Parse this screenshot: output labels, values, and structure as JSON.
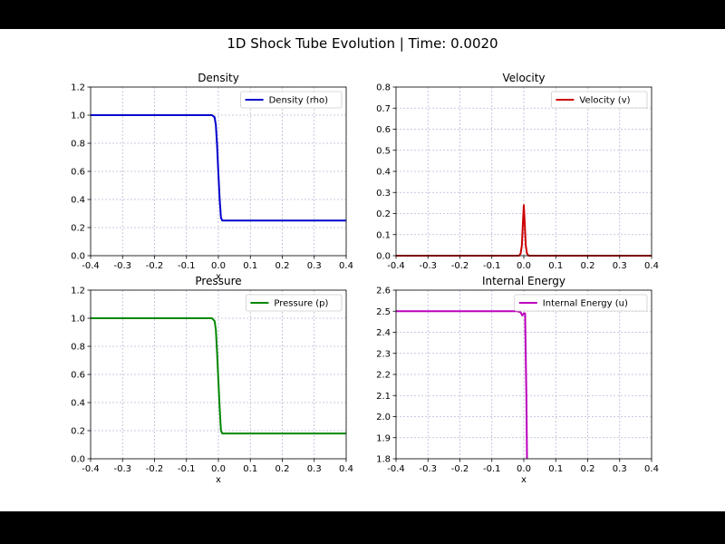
{
  "figure": {
    "suptitle": "1D Shock Tube Evolution | Time: 0.0020"
  },
  "chart_data": [
    {
      "type": "line",
      "title": "Density",
      "xlabel": "x",
      "ylabel": "",
      "xlim": [
        -0.4,
        0.4
      ],
      "ylim": [
        0,
        1.2
      ],
      "xticks": [
        "-0.4",
        "-0.3",
        "-0.2",
        "-0.1",
        "0.0",
        "0.1",
        "0.2",
        "0.3",
        "0.4"
      ],
      "yticks": [
        "0.0",
        "0.2",
        "0.4",
        "0.6",
        "0.8",
        "1.0",
        "1.2"
      ],
      "grid": true,
      "legend": "top-right",
      "series": [
        {
          "name": "Density (rho)",
          "color": "#0000cc",
          "x": [
            -0.4,
            -0.02,
            -0.012,
            -0.008,
            -0.004,
            0.0,
            0.004,
            0.008,
            0.012,
            0.4
          ],
          "y": [
            1.0,
            1.0,
            0.985,
            0.93,
            0.78,
            0.58,
            0.4,
            0.27,
            0.25,
            0.25
          ]
        }
      ]
    },
    {
      "type": "line",
      "title": "Velocity",
      "xlabel": "",
      "ylabel": "",
      "xlim": [
        -0.4,
        0.4
      ],
      "ylim": [
        0,
        0.8
      ],
      "xticks": [
        "-0.4",
        "-0.3",
        "-0.2",
        "-0.1",
        "0.0",
        "0.1",
        "0.2",
        "0.3",
        "0.4"
      ],
      "yticks": [
        "0.0",
        "0.1",
        "0.2",
        "0.3",
        "0.4",
        "0.5",
        "0.6",
        "0.7",
        "0.8"
      ],
      "grid": true,
      "legend": "top-right",
      "series": [
        {
          "name": "Velocity (v)",
          "color": "#cc0000",
          "x": [
            -0.4,
            -0.015,
            -0.01,
            -0.006,
            -0.003,
            0.0,
            0.003,
            0.006,
            0.01,
            0.015,
            0.4
          ],
          "y": [
            0.0,
            0.0,
            0.01,
            0.05,
            0.15,
            0.24,
            0.15,
            0.05,
            0.01,
            0.0,
            0.0
          ]
        }
      ]
    },
    {
      "type": "line",
      "title": "Pressure",
      "xlabel": "x",
      "ylabel": "",
      "xlim": [
        -0.4,
        0.4
      ],
      "ylim": [
        0,
        1.2
      ],
      "xticks": [
        "-0.4",
        "-0.3",
        "-0.2",
        "-0.1",
        "0.0",
        "0.1",
        "0.2",
        "0.3",
        "0.4"
      ],
      "yticks": [
        "0.0",
        "0.2",
        "0.4",
        "0.6",
        "0.8",
        "1.0",
        "1.2"
      ],
      "grid": true,
      "legend": "top-right",
      "series": [
        {
          "name": "Pressure (p)",
          "color": "#008800",
          "x": [
            -0.4,
            -0.02,
            -0.012,
            -0.008,
            -0.004,
            0.0,
            0.004,
            0.008,
            0.012,
            0.4
          ],
          "y": [
            1.0,
            1.0,
            0.98,
            0.92,
            0.75,
            0.55,
            0.36,
            0.2,
            0.18,
            0.18
          ]
        }
      ]
    },
    {
      "type": "line",
      "title": "Internal Energy",
      "xlabel": "x",
      "ylabel": "",
      "xlim": [
        -0.4,
        0.4
      ],
      "ylim": [
        1.8,
        2.6
      ],
      "xticks": [
        "-0.4",
        "-0.3",
        "-0.2",
        "-0.1",
        "0.0",
        "0.1",
        "0.2",
        "0.3",
        "0.4"
      ],
      "yticks": [
        "1.8",
        "1.9",
        "2.0",
        "2.1",
        "2.2",
        "2.3",
        "2.4",
        "2.5",
        "2.6"
      ],
      "grid": true,
      "legend": "top-right",
      "series": [
        {
          "name": "Internal Energy (u)",
          "color": "#bb00bb",
          "x": [
            -0.4,
            -0.02,
            -0.01,
            -0.005,
            0.0,
            0.004,
            0.008,
            0.01
          ],
          "y": [
            2.5,
            2.5,
            2.495,
            2.48,
            2.49,
            2.49,
            2.1,
            1.8
          ]
        }
      ]
    }
  ]
}
